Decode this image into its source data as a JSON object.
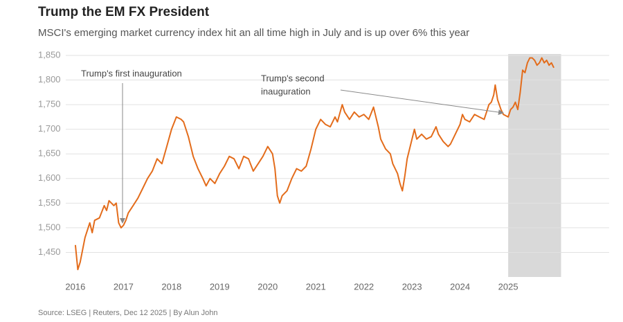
{
  "chart_data": {
    "type": "line",
    "title": "Trump the EM FX President",
    "subtitle": "MSCI's emerging market currency index hit an all time high in July and is up over 6% this year",
    "source": "Source: LSEG | Reuters, Dec 12 2025 | By Alun John",
    "annotations": [
      "Trump's first inauguration",
      "Trump's second",
      "inauguration"
    ],
    "shade_x": [
      2025.0,
      2026.1
    ],
    "xlim": [
      2015.8,
      2027.1
    ],
    "xticks": [
      2016,
      2017,
      2018,
      2019,
      2020,
      2021,
      2022,
      2023,
      2024,
      2025
    ],
    "ylim": [
      1400,
      1850
    ],
    "yticks": [
      {
        "value": 1450,
        "label": "1,450"
      },
      {
        "value": 1500,
        "label": "1,500"
      },
      {
        "value": 1550,
        "label": "1,550"
      },
      {
        "value": 1600,
        "label": "1,600"
      },
      {
        "value": 1650,
        "label": "1,650"
      },
      {
        "value": 1700,
        "label": "1,700"
      },
      {
        "value": 1750,
        "label": "1,750"
      },
      {
        "value": 1800,
        "label": "1,800"
      },
      {
        "value": 1850,
        "label": "1,850"
      }
    ],
    "grid": true,
    "series": [
      {
        "name": "MSCI EM currency index",
        "color": "#e36c1b",
        "x": [
          2016.0,
          2016.05,
          2016.1,
          2016.2,
          2016.3,
          2016.35,
          2016.4,
          2016.5,
          2016.6,
          2016.65,
          2016.7,
          2016.8,
          2016.85,
          2016.9,
          2016.95,
          2017.0,
          2017.05,
          2017.1,
          2017.2,
          2017.3,
          2017.4,
          2017.5,
          2017.6,
          2017.7,
          2017.8,
          2017.9,
          2018.0,
          2018.1,
          2018.2,
          2018.25,
          2018.35,
          2018.45,
          2018.55,
          2018.65,
          2018.72,
          2018.8,
          2018.9,
          2019.0,
          2019.1,
          2019.2,
          2019.3,
          2019.4,
          2019.5,
          2019.6,
          2019.7,
          2019.8,
          2019.9,
          2020.0,
          2020.1,
          2020.15,
          2020.2,
          2020.25,
          2020.3,
          2020.4,
          2020.5,
          2020.6,
          2020.7,
          2020.8,
          2020.9,
          2021.0,
          2021.1,
          2021.2,
          2021.3,
          2021.4,
          2021.45,
          2021.55,
          2021.6,
          2021.7,
          2021.8,
          2021.9,
          2022.0,
          2022.1,
          2022.2,
          2022.3,
          2022.35,
          2022.45,
          2022.55,
          2022.6,
          2022.7,
          2022.75,
          2022.8,
          2022.85,
          2022.9,
          2023.0,
          2023.05,
          2023.1,
          2023.2,
          2023.3,
          2023.4,
          2023.5,
          2023.55,
          2023.65,
          2023.75,
          2023.8,
          2023.9,
          2024.0,
          2024.05,
          2024.1,
          2024.2,
          2024.3,
          2024.4,
          2024.5,
          2024.55,
          2024.6,
          2024.65,
          2024.7,
          2024.73,
          2024.78,
          2024.85,
          2024.9,
          2025.0,
          2025.05,
          2025.1,
          2025.15,
          2025.2,
          2025.25,
          2025.3,
          2025.35,
          2025.4,
          2025.45,
          2025.5,
          2025.55,
          2025.6,
          2025.65,
          2025.7,
          2025.75,
          2025.8,
          2025.85,
          2025.9,
          2025.95
        ],
        "values": [
          1465,
          1415,
          1430,
          1480,
          1510,
          1490,
          1515,
          1520,
          1545,
          1535,
          1555,
          1545,
          1550,
          1510,
          1500,
          1505,
          1515,
          1530,
          1545,
          1560,
          1580,
          1600,
          1615,
          1640,
          1630,
          1665,
          1700,
          1725,
          1720,
          1715,
          1685,
          1645,
          1620,
          1600,
          1585,
          1600,
          1590,
          1610,
          1625,
          1645,
          1640,
          1620,
          1645,
          1640,
          1615,
          1630,
          1645,
          1665,
          1650,
          1620,
          1565,
          1550,
          1565,
          1575,
          1600,
          1620,
          1615,
          1625,
          1660,
          1700,
          1720,
          1710,
          1705,
          1725,
          1715,
          1750,
          1735,
          1720,
          1735,
          1725,
          1730,
          1720,
          1745,
          1705,
          1680,
          1660,
          1650,
          1630,
          1610,
          1590,
          1575,
          1605,
          1640,
          1680,
          1700,
          1680,
          1690,
          1680,
          1685,
          1705,
          1690,
          1675,
          1665,
          1670,
          1690,
          1710,
          1730,
          1720,
          1715,
          1730,
          1725,
          1720,
          1735,
          1750,
          1755,
          1770,
          1790,
          1760,
          1740,
          1730,
          1725,
          1740,
          1745,
          1755,
          1740,
          1775,
          1820,
          1815,
          1835,
          1845,
          1845,
          1840,
          1830,
          1835,
          1845,
          1835,
          1840,
          1830,
          1835,
          1825
        ]
      }
    ]
  }
}
